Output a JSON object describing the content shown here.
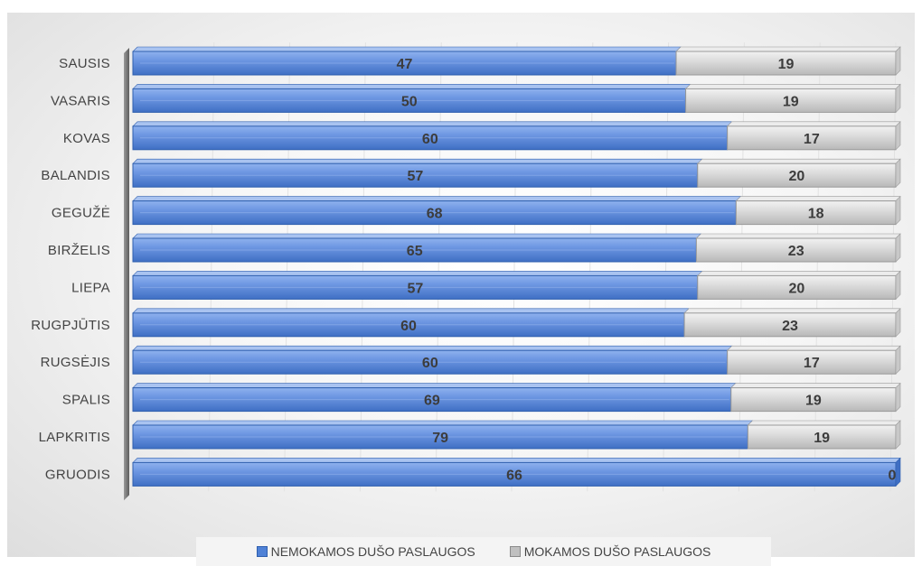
{
  "chart_data": {
    "type": "bar",
    "orientation": "horizontal",
    "stacked": true,
    "style": "3d",
    "categories": [
      "SAUSIS",
      "VASARIS",
      "KOVAS",
      "BALANDIS",
      "GEGUŽĖ",
      "BIRŽELIS",
      "LIEPA",
      "RUGPJŪTIS",
      "RUGSĖJIS",
      "SPALIS",
      "LAPKRITIS",
      "GRUODIS"
    ],
    "series": [
      {
        "name": "NEMOKAMOS DUŠO PASLAUGOS",
        "values": [
          47,
          50,
          60,
          57,
          68,
          65,
          57,
          60,
          60,
          69,
          79,
          66
        ],
        "color": "#4f81d6"
      },
      {
        "name": "MOKAMOS DUŠO PASLAUGOS",
        "values": [
          19,
          19,
          17,
          20,
          18,
          23,
          20,
          23,
          17,
          19,
          19,
          0
        ],
        "color": "#c0c0c0"
      }
    ],
    "normalized_to_100_percent": true,
    "grid": true,
    "legend": "bottom"
  }
}
